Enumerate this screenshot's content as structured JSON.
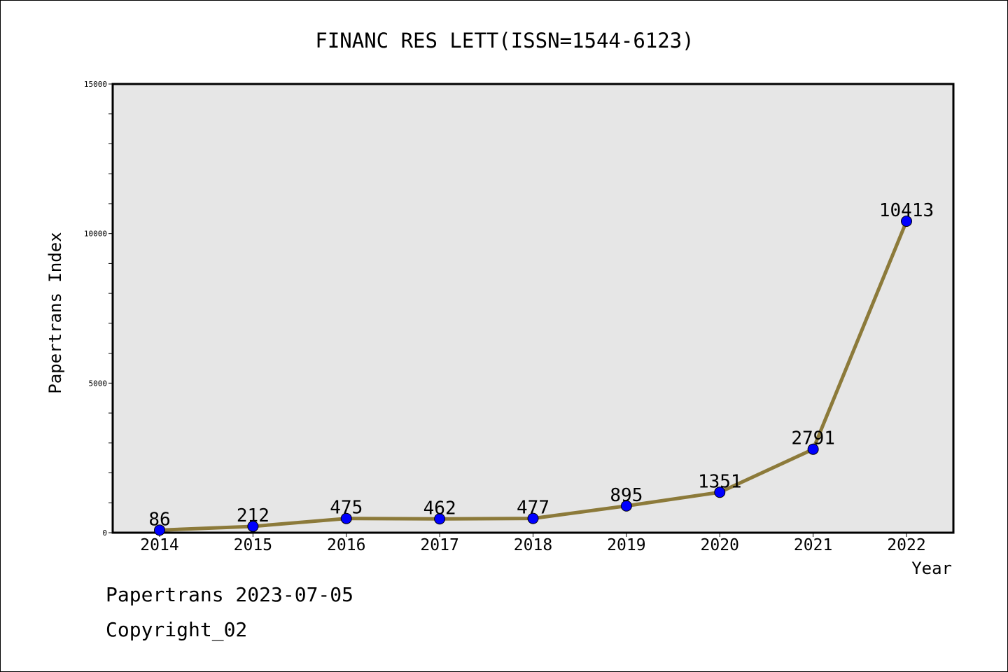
{
  "chart_data": {
    "type": "line",
    "title": "FINANC RES LETT(ISSN=1544-6123)",
    "xlabel": "Year",
    "ylabel": "Papertrans Index",
    "x": [
      "2014",
      "2015",
      "2016",
      "2017",
      "2018",
      "2019",
      "2020",
      "2021",
      "2022"
    ],
    "y": [
      86,
      212,
      475,
      462,
      477,
      895,
      1351,
      2791,
      10413
    ],
    "data_labels": [
      "86",
      "212",
      "475",
      "462",
      "477",
      "895",
      "1351",
      "2791",
      "10413"
    ],
    "ylim": [
      0,
      15000
    ],
    "y_ticks": [
      0,
      5000,
      10000,
      15000
    ],
    "y_tick_labels": [
      "0",
      "5000",
      "10000",
      "15000"
    ],
    "y_minor_step": 1000,
    "grid": false,
    "legend": "none",
    "colors": {
      "line": "#8c7a3a",
      "marker": "#0000ff",
      "plot_background": "#e6e6e6",
      "frame": "#000000"
    }
  },
  "footer": {
    "source_date": "Papertrans 2023-07-05",
    "copyright": "Copyright_02"
  }
}
